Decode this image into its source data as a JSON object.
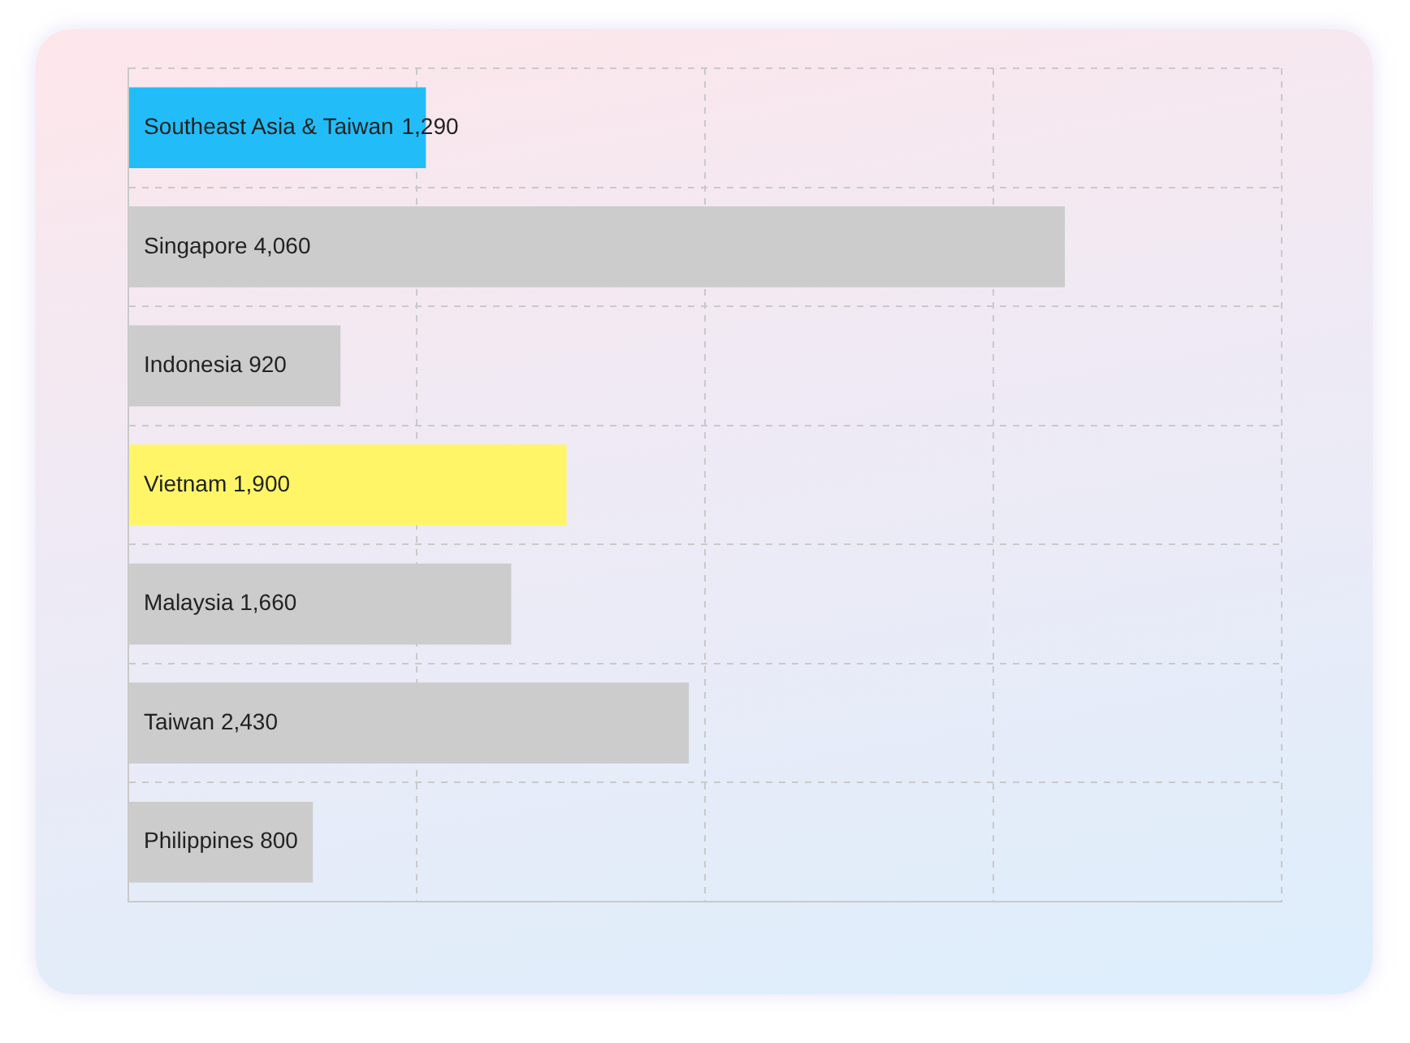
{
  "chart_data": {
    "type": "bar",
    "orientation": "horizontal",
    "categories": [
      "Southeast Asia & Taiwan",
      "Singapore",
      "Indonesia",
      "Vietnam",
      "Malaysia",
      "Taiwan",
      "Philippines"
    ],
    "values": [
      1290,
      4060,
      920,
      1900,
      1660,
      2430,
      800
    ],
    "value_labels": [
      "1,290",
      "4,060",
      "920",
      "1,900",
      "1,660",
      "2,430",
      "800"
    ],
    "colors": [
      "#22bdf8",
      "#cccccc",
      "#cccccc",
      "#fff566",
      "#cccccc",
      "#cccccc",
      "#cccccc"
    ],
    "grid": true,
    "tick_labels": false
  }
}
